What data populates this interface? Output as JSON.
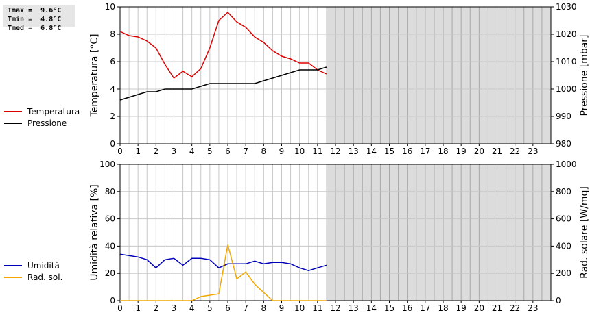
{
  "stats": {
    "lines": [
      "Tmax =  9.6°C",
      "Tmin =  4.8°C",
      "Tmed =  6.8°C"
    ]
  },
  "colors": {
    "temperature": "#dd0000",
    "pressure": "#000000",
    "humidity": "#0000bb",
    "radiation": "#f2a800",
    "future_shade": "#dcdcdc",
    "grid": "#c8c8c8"
  },
  "legend_top": [
    {
      "label": "Temperatura",
      "color": "#dd0000"
    },
    {
      "label": "Pressione",
      "color": "#000000"
    }
  ],
  "legend_bottom": [
    {
      "label": "Umidità",
      "color": "#0000bb"
    },
    {
      "label": "Rad. sol.",
      "color": "#f2a800"
    }
  ],
  "chart_data": [
    {
      "type": "line",
      "ylabel": "Temperatura [°C]",
      "y2label": "Pressione [mbar]",
      "xlim": [
        0,
        24
      ],
      "ylim": [
        0,
        10
      ],
      "y2lim": [
        980,
        1030
      ],
      "yticks": [
        "0",
        "2",
        "4",
        "6",
        "8",
        "10"
      ],
      "y2ticks": [
        "980",
        "990",
        "1000",
        "1010",
        "1020",
        "1030"
      ],
      "xticks": [
        "0",
        "1",
        "2",
        "3",
        "4",
        "5",
        "6",
        "7",
        "8",
        "9",
        "10",
        "11",
        "12",
        "13",
        "14",
        "15",
        "16",
        "17",
        "18",
        "19",
        "20",
        "21",
        "22",
        "23"
      ],
      "future_from": 11.5,
      "series": [
        {
          "name": "Temperatura",
          "axis": "left",
          "x": [
            0,
            0.5,
            1,
            1.5,
            2,
            2.5,
            3,
            3.5,
            4,
            4.5,
            5,
            5.5,
            6,
            6.5,
            7,
            7.5,
            8,
            8.5,
            9,
            9.5,
            10,
            10.5,
            11,
            11.5
          ],
          "y": [
            8.2,
            7.9,
            7.8,
            7.5,
            7.0,
            5.8,
            4.8,
            5.3,
            4.9,
            5.5,
            7.0,
            9.0,
            9.6,
            8.9,
            8.5,
            7.8,
            7.4,
            6.8,
            6.4,
            6.2,
            5.9,
            5.9,
            5.4,
            5.1
          ]
        },
        {
          "name": "Pressione",
          "axis": "right",
          "x": [
            0,
            0.5,
            1,
            1.5,
            2,
            2.5,
            3,
            3.5,
            4,
            4.5,
            5,
            5.5,
            6,
            6.5,
            7,
            7.5,
            8,
            8.5,
            9,
            9.5,
            10,
            10.5,
            11,
            11.5
          ],
          "y": [
            996,
            997,
            998,
            999,
            999,
            1000,
            1000,
            1000,
            1000,
            1001,
            1002,
            1002,
            1002,
            1002,
            1002,
            1002,
            1003,
            1004,
            1005,
            1006,
            1007,
            1007,
            1007,
            1008
          ]
        }
      ]
    },
    {
      "type": "line",
      "ylabel": "Umidità relativa [%]",
      "y2label": "Rad. solare [W/mq]",
      "xlim": [
        0,
        24
      ],
      "ylim": [
        0,
        100
      ],
      "y2lim": [
        0,
        1000
      ],
      "yticks": [
        "0",
        "20",
        "40",
        "60",
        "80",
        "100"
      ],
      "y2ticks": [
        "0",
        "200",
        "400",
        "600",
        "800",
        "1000"
      ],
      "xticks": [
        "0",
        "1",
        "2",
        "3",
        "4",
        "5",
        "6",
        "7",
        "8",
        "9",
        "10",
        "11",
        "12",
        "13",
        "14",
        "15",
        "16",
        "17",
        "18",
        "19",
        "20",
        "21",
        "22",
        "23"
      ],
      "future_from": 11.5,
      "series": [
        {
          "name": "Umidità",
          "axis": "left",
          "x": [
            0,
            0.5,
            1,
            1.5,
            2,
            2.5,
            3,
            3.5,
            4,
            4.5,
            5,
            5.5,
            6,
            6.5,
            7,
            7.5,
            8,
            8.5,
            9,
            9.5,
            10,
            10.5,
            11,
            11.5
          ],
          "y": [
            34,
            33,
            32,
            30,
            24,
            30,
            31,
            26,
            31,
            31,
            30,
            24,
            27,
            27,
            27,
            29,
            27,
            28,
            28,
            27,
            24,
            22,
            24,
            26
          ]
        },
        {
          "name": "Rad. sol.",
          "axis": "right",
          "x": [
            0,
            0.5,
            1,
            1.5,
            2,
            2.5,
            3,
            3.5,
            4,
            4.5,
            5,
            5.5,
            6,
            6.5,
            7,
            7.5,
            8,
            8.5,
            9,
            9.5,
            10,
            10.5,
            11,
            11.5
          ],
          "y": [
            0,
            0,
            0,
            0,
            0,
            0,
            0,
            0,
            0,
            30,
            40,
            50,
            410,
            160,
            210,
            120,
            60,
            0,
            0,
            0,
            0,
            0,
            0,
            0
          ]
        }
      ]
    }
  ]
}
